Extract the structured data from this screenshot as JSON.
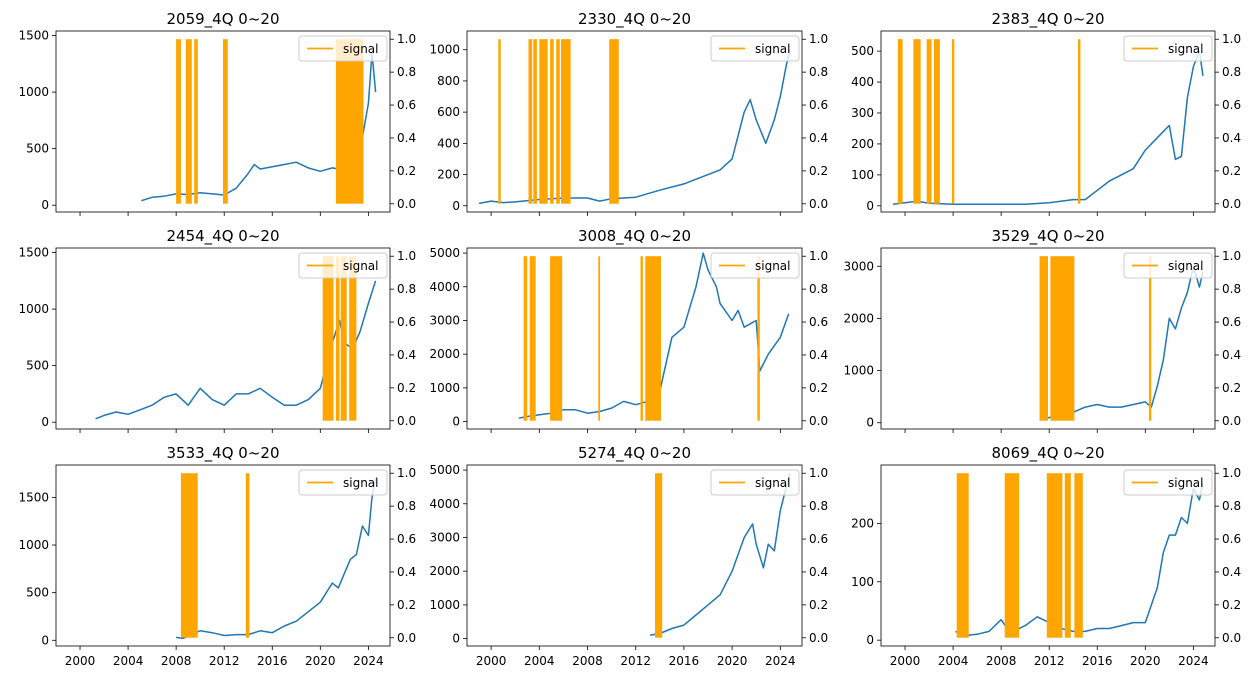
{
  "figure": {
    "colors": {
      "price": "#1f77b4",
      "signal": "#ffa500",
      "axis": "#000000"
    },
    "x_ticks": [
      "2000",
      "2004",
      "2008",
      "2012",
      "2016",
      "2020",
      "2024"
    ]
  },
  "chart_data": [
    {
      "type": "line",
      "title": "2059_4Q 0~20",
      "xlim": [
        1998.0,
        2025.8
      ],
      "ylim": [
        -60,
        1540
      ],
      "y_ticks": [
        0,
        500,
        1000,
        1500
      ],
      "y2_ticks": [
        "0.0",
        "0.2",
        "0.4",
        "0.6",
        "0.8",
        "1.0"
      ],
      "show_x_tick_labels": false,
      "legend": {
        "label": "signal",
        "location": "upper right"
      },
      "series": [
        {
          "name": "",
          "x": [
            2005.1,
            2006.0,
            2007.0,
            2008.0,
            2009.0,
            2010.0,
            2011.0,
            2012.0,
            2013.0,
            2014.0,
            2014.5,
            2015.0,
            2016.0,
            2017.0,
            2018.0,
            2019.0,
            2020.0,
            2021.0,
            2022.0,
            2023.0,
            2023.5,
            2024.0,
            2024.3,
            2024.6
          ],
          "y": [
            40,
            70,
            80,
            100,
            95,
            110,
            100,
            90,
            150,
            280,
            360,
            320,
            340,
            360,
            380,
            330,
            300,
            330,
            310,
            350,
            600,
            900,
            1350,
            1000
          ]
        },
        {
          "name": "signal",
          "intervals": [
            [
              2008.0,
              2008.4
            ],
            [
              2008.8,
              2009.3
            ],
            [
              2009.5,
              2009.8
            ],
            [
              2011.9,
              2012.3
            ],
            [
              2021.3,
              2023.6
            ]
          ]
        }
      ]
    },
    {
      "type": "line",
      "title": "2330_4Q 0~20",
      "xlim": [
        1998.0,
        2025.8
      ],
      "ylim": [
        -40,
        1120
      ],
      "y_ticks": [
        0,
        200,
        400,
        600,
        800,
        1000
      ],
      "y2_ticks": [
        "0.0",
        "0.2",
        "0.4",
        "0.6",
        "0.8",
        "1.0"
      ],
      "show_x_tick_labels": false,
      "legend": {
        "label": "signal",
        "location": "upper right"
      },
      "series": [
        {
          "name": "",
          "x": [
            1999.0,
            2000.0,
            2001.0,
            2002.0,
            2004.0,
            2006.0,
            2008.0,
            2009.0,
            2010.0,
            2012.0,
            2014.0,
            2016.0,
            2018.0,
            2019.0,
            2020.0,
            2021.0,
            2021.5,
            2022.0,
            2022.8,
            2023.5,
            2024.0,
            2024.5,
            2024.8
          ],
          "y": [
            15,
            30,
            20,
            25,
            40,
            50,
            50,
            30,
            45,
            55,
            100,
            140,
            200,
            230,
            300,
            600,
            680,
            550,
            400,
            550,
            700,
            900,
            1000
          ]
        },
        {
          "name": "signal",
          "intervals": [
            [
              2000.6,
              2000.8
            ],
            [
              2003.1,
              2003.4
            ],
            [
              2003.5,
              2003.8
            ],
            [
              2004.0,
              2004.7
            ],
            [
              2004.9,
              2005.2
            ],
            [
              2005.4,
              2005.7
            ],
            [
              2005.8,
              2006.6
            ],
            [
              2009.8,
              2010.6
            ]
          ]
        }
      ]
    },
    {
      "type": "line",
      "title": "2383_4Q 0~20",
      "xlim": [
        1998.0,
        2025.8
      ],
      "ylim": [
        -20,
        565
      ],
      "y_ticks": [
        0,
        100,
        200,
        300,
        400,
        500
      ],
      "y2_ticks": [
        "0.0",
        "0.2",
        "0.4",
        "0.6",
        "0.8",
        "1.0"
      ],
      "show_x_tick_labels": false,
      "legend": {
        "label": "signal",
        "location": "upper right"
      },
      "series": [
        {
          "name": "",
          "x": [
            1999.0,
            2000.0,
            2001.0,
            2002.0,
            2004.0,
            2006.0,
            2008.0,
            2010.0,
            2012.0,
            2014.0,
            2015.0,
            2016.0,
            2017.0,
            2018.0,
            2019.0,
            2020.0,
            2021.0,
            2022.0,
            2022.5,
            2023.0,
            2023.5,
            2024.0,
            2024.5,
            2024.8
          ],
          "y": [
            5,
            10,
            15,
            8,
            5,
            5,
            5,
            5,
            10,
            20,
            20,
            50,
            80,
            100,
            120,
            180,
            220,
            260,
            150,
            160,
            350,
            450,
            500,
            420
          ]
        },
        {
          "name": "signal",
          "intervals": [
            [
              1999.4,
              1999.8
            ],
            [
              2000.7,
              2001.3
            ],
            [
              2001.8,
              2002.2
            ],
            [
              2002.4,
              2002.9
            ],
            [
              2003.9,
              2004.1
            ],
            [
              2014.4,
              2014.6
            ]
          ]
        }
      ]
    },
    {
      "type": "line",
      "title": "2454_4Q 0~20",
      "xlim": [
        1998.0,
        2025.8
      ],
      "ylim": [
        -60,
        1540
      ],
      "y_ticks": [
        0,
        500,
        1000,
        1500
      ],
      "y2_ticks": [
        "0.0",
        "0.2",
        "0.4",
        "0.6",
        "0.8",
        "1.0"
      ],
      "show_x_tick_labels": false,
      "legend": {
        "label": "signal",
        "location": "upper right"
      },
      "series": [
        {
          "name": "",
          "x": [
            2001.3,
            2002.0,
            2003.0,
            2004.0,
            2005.0,
            2006.0,
            2007.0,
            2008.0,
            2009.0,
            2010.0,
            2011.0,
            2012.0,
            2013.0,
            2014.0,
            2015.0,
            2016.0,
            2017.0,
            2018.0,
            2019.0,
            2020.0,
            2021.0,
            2021.6,
            2022.0,
            2022.7,
            2023.3,
            2024.0,
            2024.6
          ],
          "y": [
            30,
            60,
            90,
            70,
            110,
            150,
            220,
            250,
            150,
            300,
            200,
            150,
            250,
            250,
            300,
            220,
            150,
            150,
            200,
            300,
            700,
            900,
            700,
            650,
            800,
            1050,
            1250
          ]
        },
        {
          "name": "signal",
          "intervals": [
            [
              2020.2,
              2021.1
            ],
            [
              2021.3,
              2021.6
            ],
            [
              2021.7,
              2022.2
            ],
            [
              2022.4,
              2023.0
            ]
          ]
        }
      ]
    },
    {
      "type": "line",
      "title": "3008_4Q 0~20",
      "xlim": [
        1998.0,
        2025.8
      ],
      "ylim": [
        -220,
        5150
      ],
      "y_ticks": [
        0,
        1000,
        2000,
        3000,
        4000,
        5000
      ],
      "y2_ticks": [
        "0.0",
        "0.2",
        "0.4",
        "0.6",
        "0.8",
        "1.0"
      ],
      "show_x_tick_labels": false,
      "legend": {
        "label": "signal",
        "location": "upper right"
      },
      "series": [
        {
          "name": "",
          "x": [
            2002.3,
            2003.0,
            2004.0,
            2005.0,
            2006.0,
            2007.0,
            2008.0,
            2009.0,
            2010.0,
            2011.0,
            2012.0,
            2013.0,
            2014.0,
            2015.0,
            2016.0,
            2017.0,
            2017.6,
            2018.0,
            2018.7,
            2019.0,
            2020.0,
            2020.5,
            2021.0,
            2022.0,
            2022.3,
            2023.0,
            2024.0,
            2024.7
          ],
          "y": [
            100,
            150,
            200,
            250,
            350,
            350,
            250,
            300,
            400,
            600,
            500,
            600,
            900,
            2500,
            2800,
            4000,
            5000,
            4500,
            4000,
            3500,
            3000,
            3300,
            2800,
            3000,
            1500,
            2000,
            2500,
            3200
          ]
        },
        {
          "name": "signal",
          "intervals": [
            [
              2002.7,
              2003.0
            ],
            [
              2003.2,
              2003.7
            ],
            [
              2004.9,
              2005.9
            ],
            [
              2008.9,
              2009.05
            ],
            [
              2012.4,
              2012.6
            ],
            [
              2012.8,
              2014.1
            ],
            [
              2022.1,
              2022.3
            ]
          ]
        }
      ]
    },
    {
      "type": "line",
      "title": "3529_4Q 0~20",
      "xlim": [
        1998.0,
        2025.8
      ],
      "ylim": [
        -120,
        3350
      ],
      "y_ticks": [
        0,
        1000,
        2000,
        3000
      ],
      "y2_ticks": [
        "0.0",
        "0.2",
        "0.4",
        "0.6",
        "0.8",
        "1.0"
      ],
      "show_x_tick_labels": false,
      "legend": {
        "label": "signal",
        "location": "upper right"
      },
      "series": [
        {
          "name": "",
          "x": [
            2011.2,
            2012.0,
            2013.0,
            2014.0,
            2015.0,
            2016.0,
            2017.0,
            2018.0,
            2019.0,
            2020.0,
            2020.5,
            2021.0,
            2021.5,
            2022.0,
            2022.5,
            2023.0,
            2023.5,
            2024.0,
            2024.5,
            2024.8
          ],
          "y": [
            50,
            100,
            150,
            200,
            300,
            350,
            300,
            300,
            350,
            400,
            300,
            700,
            1200,
            2000,
            1800,
            2200,
            2500,
            3000,
            2600,
            2900
          ]
        },
        {
          "name": "signal",
          "intervals": [
            [
              2011.2,
              2011.9
            ],
            [
              2012.1,
              2014.1
            ],
            [
              2020.3,
              2020.5
            ]
          ]
        }
      ]
    },
    {
      "type": "line",
      "title": "3533_4Q 0~20",
      "xlim": [
        1998.0,
        2025.8
      ],
      "ylim": [
        -60,
        1840
      ],
      "y_ticks": [
        0,
        500,
        1000,
        1500
      ],
      "y2_ticks": [
        "0.0",
        "0.2",
        "0.4",
        "0.6",
        "0.8",
        "1.0"
      ],
      "show_x_tick_labels": true,
      "legend": {
        "label": "signal",
        "location": "upper right"
      },
      "series": [
        {
          "name": "",
          "x": [
            2008.0,
            2008.6,
            2009.0,
            2010.0,
            2011.0,
            2012.0,
            2013.0,
            2014.0,
            2015.0,
            2016.0,
            2017.0,
            2018.0,
            2019.0,
            2020.0,
            2021.0,
            2021.5,
            2022.0,
            2022.5,
            2023.0,
            2023.5,
            2024.0,
            2024.3,
            2024.6
          ],
          "y": [
            30,
            20,
            50,
            100,
            80,
            50,
            60,
            60,
            100,
            80,
            150,
            200,
            300,
            400,
            600,
            550,
            700,
            850,
            900,
            1200,
            1100,
            1500,
            1700
          ]
        },
        {
          "name": "signal",
          "intervals": [
            [
              2008.4,
              2009.8
            ],
            [
              2013.8,
              2014.1
            ]
          ]
        }
      ]
    },
    {
      "type": "line",
      "title": "5274_4Q 0~20",
      "xlim": [
        1998.0,
        2025.8
      ],
      "ylim": [
        -220,
        5150
      ],
      "y_ticks": [
        0,
        1000,
        2000,
        3000,
        4000,
        5000
      ],
      "y2_ticks": [
        "0.0",
        "0.2",
        "0.4",
        "0.6",
        "0.8",
        "1.0"
      ],
      "show_x_tick_labels": true,
      "legend": {
        "label": "signal",
        "location": "upper right"
      },
      "series": [
        {
          "name": "",
          "x": [
            2013.2,
            2014.0,
            2015.0,
            2016.0,
            2017.0,
            2018.0,
            2019.0,
            2020.0,
            2021.0,
            2021.7,
            2022.0,
            2022.6,
            2023.0,
            2023.5,
            2024.0,
            2024.5,
            2024.8
          ],
          "y": [
            100,
            150,
            300,
            400,
            700,
            1000,
            1300,
            2000,
            3000,
            3400,
            2800,
            2100,
            2800,
            2600,
            3800,
            4500,
            4900
          ]
        },
        {
          "name": "signal",
          "intervals": [
            [
              2013.6,
              2014.2
            ]
          ]
        }
      ]
    },
    {
      "type": "line",
      "title": "8069_4Q 0~20",
      "xlim": [
        1998.0,
        2025.8
      ],
      "ylim": [
        -10,
        300
      ],
      "y_ticks": [
        0,
        100,
        200
      ],
      "y2_ticks": [
        "0.0",
        "0.2",
        "0.4",
        "0.6",
        "0.8",
        "1.0"
      ],
      "show_x_tick_labels": true,
      "legend": {
        "label": "signal",
        "location": "upper right"
      },
      "series": [
        {
          "name": "",
          "x": [
            2004.2,
            2005.0,
            2006.0,
            2007.0,
            2008.0,
            2008.5,
            2009.0,
            2010.0,
            2011.0,
            2012.0,
            2013.0,
            2014.0,
            2015.0,
            2016.0,
            2017.0,
            2018.0,
            2019.0,
            2020.0,
            2021.0,
            2021.5,
            2022.0,
            2022.5,
            2023.0,
            2023.5,
            2024.0,
            2024.5,
            2024.8
          ],
          "y": [
            15,
            8,
            10,
            15,
            35,
            20,
            15,
            25,
            40,
            30,
            20,
            15,
            15,
            20,
            20,
            25,
            30,
            30,
            90,
            150,
            180,
            180,
            210,
            200,
            260,
            240,
            270
          ]
        },
        {
          "name": "signal",
          "intervals": [
            [
              2004.3,
              2005.3
            ],
            [
              2008.3,
              2009.5
            ],
            [
              2011.8,
              2013.1
            ],
            [
              2013.3,
              2013.8
            ],
            [
              2014.1,
              2014.8
            ]
          ]
        }
      ]
    }
  ]
}
